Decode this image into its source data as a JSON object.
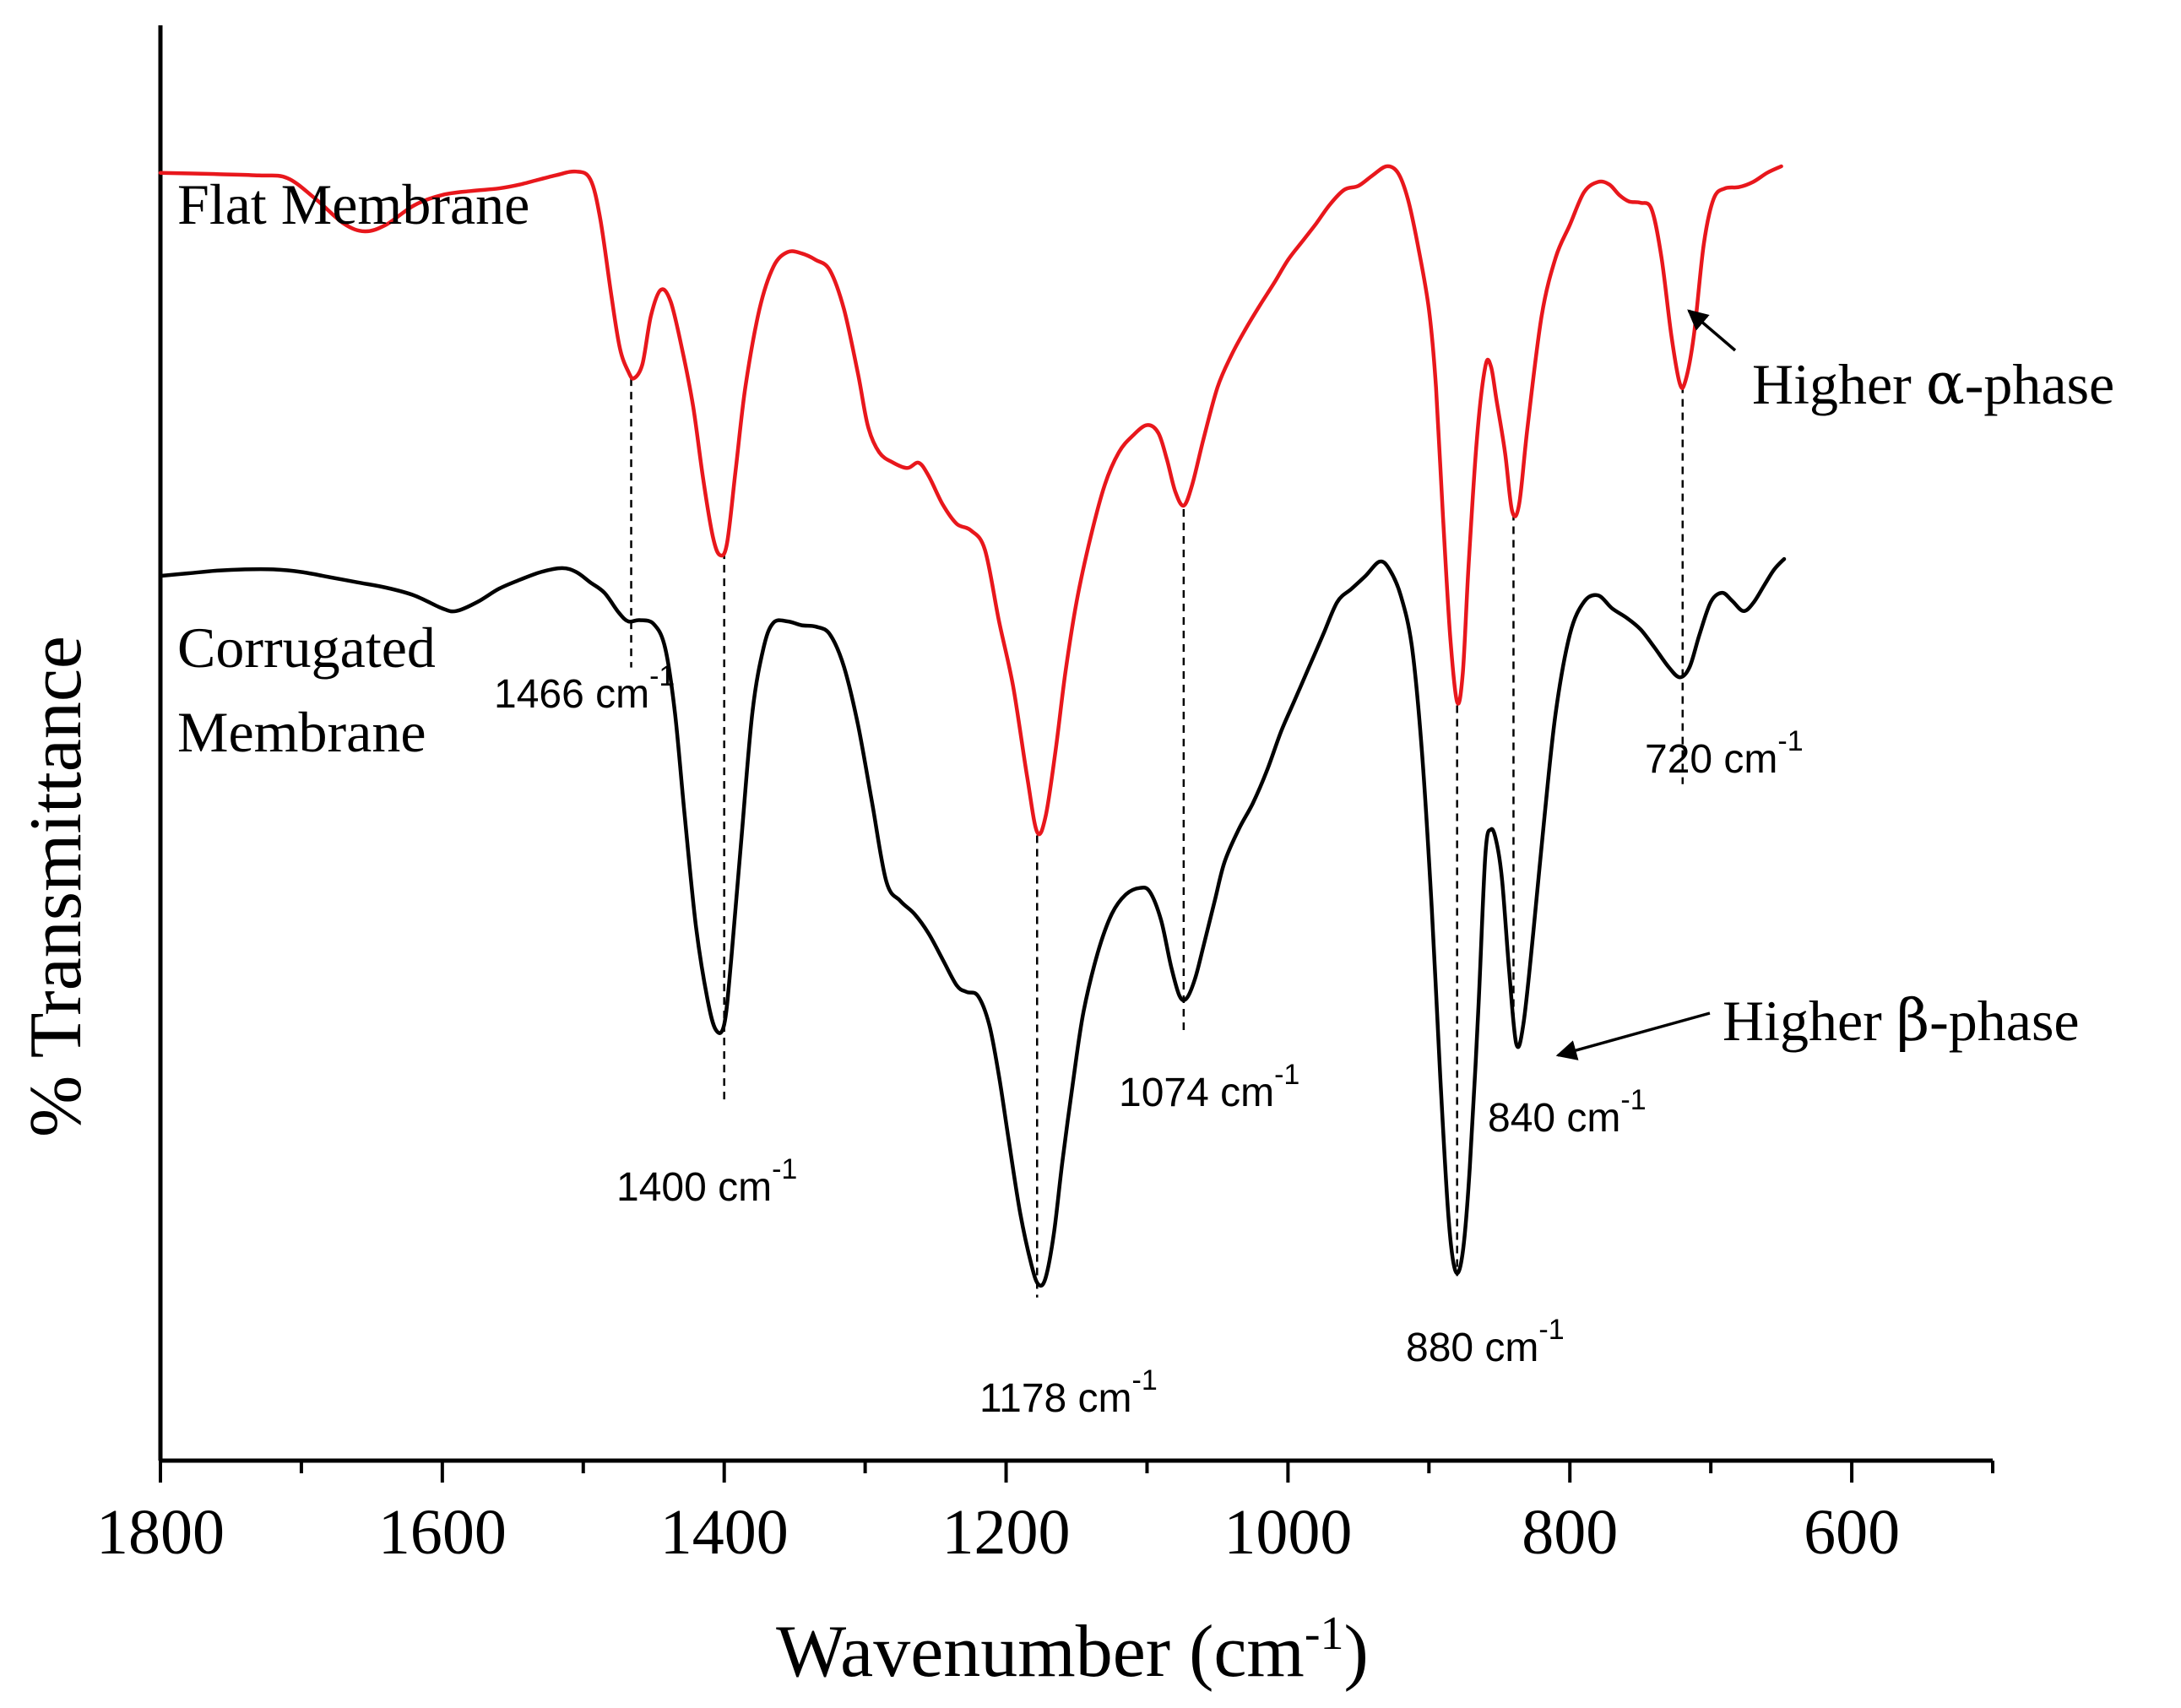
{
  "chart_data": {
    "type": "line",
    "title": "",
    "xlabel": {
      "text": "Wavenumber (cm",
      "sup": "-1",
      "suffix": ")"
    },
    "ylabel": "% Transmittance",
    "xlim": [
      1800,
      500
    ],
    "ylim": [
      0,
      100
    ],
    "x_reversed": true,
    "y_ticks_shown": false,
    "xticks": [
      1800,
      1600,
      1400,
      1200,
      1000,
      800,
      600
    ],
    "series": [
      {
        "name": "Flat Membrane",
        "color": "#e8171c",
        "points": [
          [
            1800,
            94.5
          ],
          [
            1760,
            94.4
          ],
          [
            1730,
            94.3
          ],
          [
            1710,
            94.1
          ],
          [
            1690,
            92.5
          ],
          [
            1670,
            90.6
          ],
          [
            1655,
            90.0
          ],
          [
            1640,
            90.5
          ],
          [
            1620,
            92.0
          ],
          [
            1600,
            92.8
          ],
          [
            1580,
            93.1
          ],
          [
            1560,
            93.3
          ],
          [
            1545,
            93.6
          ],
          [
            1520,
            94.3
          ],
          [
            1505,
            94.6
          ],
          [
            1495,
            94.0
          ],
          [
            1488,
            91.0
          ],
          [
            1480,
            85.0
          ],
          [
            1474,
            81.0
          ],
          [
            1468,
            79.2
          ],
          [
            1464,
            78.7
          ],
          [
            1458,
            79.8
          ],
          [
            1452,
            83.5
          ],
          [
            1445,
            85.5
          ],
          [
            1438,
            84.6
          ],
          [
            1430,
            81.0
          ],
          [
            1422,
            76.5
          ],
          [
            1415,
            71.0
          ],
          [
            1408,
            66.5
          ],
          [
            1403,
            65.1
          ],
          [
            1398,
            66.0
          ],
          [
            1392,
            71.5
          ],
          [
            1385,
            78.0
          ],
          [
            1375,
            84.0
          ],
          [
            1365,
            87.3
          ],
          [
            1355,
            88.4
          ],
          [
            1345,
            88.3
          ],
          [
            1335,
            87.8
          ],
          [
            1325,
            87.0
          ],
          [
            1315,
            84.0
          ],
          [
            1305,
            79.0
          ],
          [
            1298,
            75.0
          ],
          [
            1290,
            73.0
          ],
          [
            1280,
            72.2
          ],
          [
            1270,
            71.8
          ],
          [
            1262,
            72.2
          ],
          [
            1255,
            71.2
          ],
          [
            1245,
            69.0
          ],
          [
            1235,
            67.5
          ],
          [
            1225,
            67.0
          ],
          [
            1215,
            65.5
          ],
          [
            1205,
            60.0
          ],
          [
            1195,
            55.0
          ],
          [
            1185,
            48.0
          ],
          [
            1178,
            43.8
          ],
          [
            1172,
            45.0
          ],
          [
            1165,
            50.0
          ],
          [
            1158,
            56.0
          ],
          [
            1150,
            61.5
          ],
          [
            1140,
            66.5
          ],
          [
            1130,
            70.5
          ],
          [
            1120,
            73.0
          ],
          [
            1110,
            74.3
          ],
          [
            1100,
            75.1
          ],
          [
            1092,
            74.5
          ],
          [
            1086,
            72.5
          ],
          [
            1080,
            70.0
          ],
          [
            1074,
            68.9
          ],
          [
            1068,
            70.5
          ],
          [
            1060,
            74.0
          ],
          [
            1050,
            78.0
          ],
          [
            1040,
            80.5
          ],
          [
            1030,
            82.5
          ],
          [
            1020,
            84.3
          ],
          [
            1010,
            86.0
          ],
          [
            1000,
            87.8
          ],
          [
            990,
            89.2
          ],
          [
            980,
            90.6
          ],
          [
            970,
            92.1
          ],
          [
            960,
            93.2
          ],
          [
            950,
            93.5
          ],
          [
            940,
            94.3
          ],
          [
            930,
            95.0
          ],
          [
            922,
            94.5
          ],
          [
            915,
            92.5
          ],
          [
            908,
            89.0
          ],
          [
            900,
            84.0
          ],
          [
            895,
            78.0
          ],
          [
            890,
            68.0
          ],
          [
            885,
            59.0
          ],
          [
            880,
            53.8
          ],
          [
            876,
            56.0
          ],
          [
            872,
            64.0
          ],
          [
            866,
            74.0
          ],
          [
            860,
            79.6
          ],
          [
            856,
            79.6
          ],
          [
            852,
            77.0
          ],
          [
            846,
            73.0
          ],
          [
            841,
            68.5
          ],
          [
            836,
            69.0
          ],
          [
            830,
            75.0
          ],
          [
            820,
            83.5
          ],
          [
            810,
            88.0
          ],
          [
            800,
            90.5
          ],
          [
            790,
            93.0
          ],
          [
            780,
            93.8
          ],
          [
            772,
            93.6
          ],
          [
            765,
            92.8
          ],
          [
            758,
            92.3
          ],
          [
            750,
            92.2
          ],
          [
            742,
            91.7
          ],
          [
            735,
            88.0
          ],
          [
            728,
            82.0
          ],
          [
            722,
            78.3
          ],
          [
            718,
            78.5
          ],
          [
            712,
            82.0
          ],
          [
            705,
            89.0
          ],
          [
            698,
            92.5
          ],
          [
            690,
            93.3
          ],
          [
            680,
            93.4
          ],
          [
            670,
            93.8
          ],
          [
            660,
            94.5
          ],
          [
            650,
            95.0
          ]
        ]
      },
      {
        "name": "Corrugated Membrane",
        "color": "#000000",
        "points": [
          [
            1800,
            63.5
          ],
          [
            1780,
            63.7
          ],
          [
            1760,
            63.9
          ],
          [
            1740,
            64.0
          ],
          [
            1720,
            64.0
          ],
          [
            1700,
            63.8
          ],
          [
            1680,
            63.4
          ],
          [
            1660,
            63.0
          ],
          [
            1640,
            62.6
          ],
          [
            1620,
            62.0
          ],
          [
            1600,
            61.0
          ],
          [
            1590,
            60.8
          ],
          [
            1575,
            61.5
          ],
          [
            1560,
            62.5
          ],
          [
            1545,
            63.2
          ],
          [
            1530,
            63.8
          ],
          [
            1515,
            64.1
          ],
          [
            1505,
            63.8
          ],
          [
            1495,
            63.0
          ],
          [
            1485,
            62.2
          ],
          [
            1475,
            60.7
          ],
          [
            1468,
            60.0
          ],
          [
            1460,
            60.1
          ],
          [
            1450,
            59.8
          ],
          [
            1442,
            58.0
          ],
          [
            1435,
            53.0
          ],
          [
            1428,
            45.0
          ],
          [
            1420,
            36.5
          ],
          [
            1412,
            31.0
          ],
          [
            1406,
            28.6
          ],
          [
            1400,
            29.0
          ],
          [
            1395,
            34.0
          ],
          [
            1388,
            43.0
          ],
          [
            1380,
            53.0
          ],
          [
            1372,
            58.0
          ],
          [
            1365,
            59.9
          ],
          [
            1355,
            60.0
          ],
          [
            1345,
            59.7
          ],
          [
            1335,
            59.6
          ],
          [
            1325,
            59.0
          ],
          [
            1315,
            56.5
          ],
          [
            1305,
            52.0
          ],
          [
            1295,
            46.0
          ],
          [
            1285,
            40.0
          ],
          [
            1275,
            38.5
          ],
          [
            1265,
            37.5
          ],
          [
            1255,
            36.0
          ],
          [
            1245,
            34.0
          ],
          [
            1235,
            32.0
          ],
          [
            1228,
            31.5
          ],
          [
            1220,
            31.2
          ],
          [
            1212,
            29.0
          ],
          [
            1205,
            25.0
          ],
          [
            1198,
            20.0
          ],
          [
            1190,
            14.5
          ],
          [
            1182,
            10.5
          ],
          [
            1177,
            9.0
          ],
          [
            1172,
            9.5
          ],
          [
            1166,
            13.0
          ],
          [
            1160,
            18.5
          ],
          [
            1152,
            25.0
          ],
          [
            1145,
            30.0
          ],
          [
            1135,
            34.5
          ],
          [
            1125,
            37.5
          ],
          [
            1115,
            39.0
          ],
          [
            1105,
            39.5
          ],
          [
            1098,
            39.2
          ],
          [
            1090,
            37.0
          ],
          [
            1083,
            33.5
          ],
          [
            1077,
            31.2
          ],
          [
            1072,
            31.0
          ],
          [
            1066,
            32.5
          ],
          [
            1060,
            35.0
          ],
          [
            1052,
            38.5
          ],
          [
            1045,
            41.5
          ],
          [
            1035,
            44.0
          ],
          [
            1025,
            46.0
          ],
          [
            1015,
            48.5
          ],
          [
            1005,
            51.5
          ],
          [
            995,
            54.0
          ],
          [
            985,
            56.5
          ],
          [
            975,
            59.0
          ],
          [
            965,
            61.5
          ],
          [
            955,
            62.5
          ],
          [
            945,
            63.5
          ],
          [
            935,
            64.6
          ],
          [
            928,
            64.0
          ],
          [
            920,
            62.0
          ],
          [
            912,
            58.0
          ],
          [
            905,
            50.0
          ],
          [
            898,
            38.0
          ],
          [
            892,
            25.0
          ],
          [
            886,
            14.0
          ],
          [
            881,
            10.0
          ],
          [
            876,
            11.5
          ],
          [
            871,
            18.0
          ],
          [
            865,
            30.0
          ],
          [
            860,
            42.0
          ],
          [
            856,
            44.0
          ],
          [
            852,
            43.0
          ],
          [
            848,
            40.0
          ],
          [
            843,
            33.0
          ],
          [
            838,
            27.5
          ],
          [
            833,
            29.0
          ],
          [
            826,
            36.0
          ],
          [
            818,
            45.0
          ],
          [
            810,
            53.0
          ],
          [
            800,
            59.0
          ],
          [
            790,
            61.5
          ],
          [
            780,
            62.0
          ],
          [
            770,
            61.0
          ],
          [
            760,
            60.3
          ],
          [
            750,
            59.4
          ],
          [
            740,
            58.0
          ],
          [
            730,
            56.5
          ],
          [
            722,
            55.7
          ],
          [
            715,
            56.5
          ],
          [
            708,
            59.0
          ],
          [
            700,
            61.5
          ],
          [
            692,
            62.2
          ],
          [
            685,
            61.6
          ],
          [
            677,
            60.8
          ],
          [
            670,
            61.4
          ],
          [
            662,
            62.8
          ],
          [
            655,
            64.0
          ],
          [
            648,
            64.8
          ]
        ]
      }
    ],
    "series_labels": [
      {
        "lines": [
          "Flat Membrane"
        ]
      },
      {
        "lines": [
          "Corrugated",
          "Membrane"
        ]
      }
    ],
    "peak_annotations": [
      {
        "label": "1466",
        "x": 1466
      },
      {
        "label": "1400",
        "x": 1400
      },
      {
        "label": "1178",
        "x": 1178
      },
      {
        "label": "1074",
        "x": 1074
      },
      {
        "label": "880",
        "x": 880
      },
      {
        "label": "840",
        "x": 840
      },
      {
        "label": "720",
        "x": 720
      }
    ],
    "peak_unit": "cm",
    "peak_unit_sup": "-1",
    "phase_annotations": [
      {
        "prefix": "Higher ",
        "greek": "α",
        "suffix": "-phase",
        "points_to": 720
      },
      {
        "prefix": "Higher ",
        "greek": "β",
        "suffix": "-phase",
        "points_to": 840
      }
    ]
  }
}
